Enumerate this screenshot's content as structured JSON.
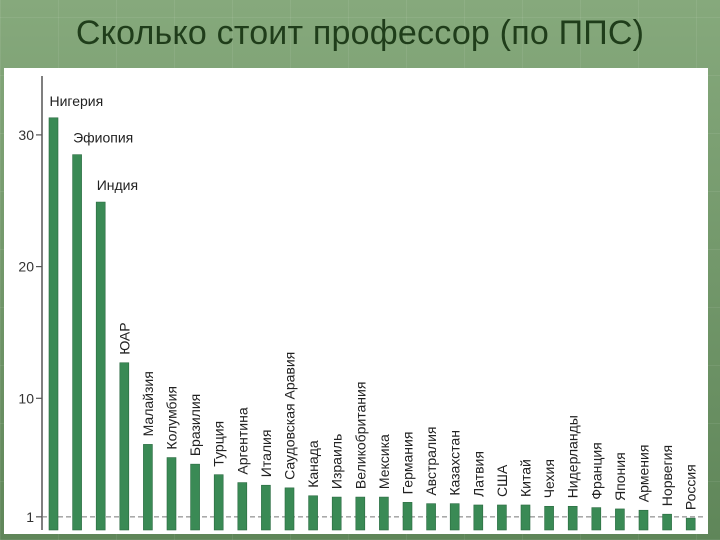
{
  "slide": {
    "title": "Сколько стоит профессор (по ППС)"
  },
  "chart_data": {
    "type": "bar",
    "title": "",
    "xlabel": "",
    "ylabel": "",
    "ylim": [
      0,
      35
    ],
    "yticks": [
      1,
      10,
      20,
      30
    ],
    "reference_line": 1,
    "grid": false,
    "bar_color": "#3a8a55",
    "categories": [
      "Нигерия",
      "Эфиопия",
      "Индия",
      "ЮАР",
      "Малайзия",
      "Колумбия",
      "Бразилия",
      "Турция",
      "Аргентина",
      "Италия",
      "Саудовская Аравия",
      "Канада",
      "Израиль",
      "Великобритания",
      "Мексика",
      "Германия",
      "Австралия",
      "Казахстан",
      "Латвия",
      "США",
      "Китай",
      "Чехия",
      "Нидерланды",
      "Франция",
      "Япония",
      "Армения",
      "Норвегия",
      "Россия"
    ],
    "values": [
      31.3,
      28.5,
      24.9,
      12.7,
      6.5,
      5.5,
      5.0,
      4.2,
      3.6,
      3.4,
      3.2,
      2.6,
      2.5,
      2.5,
      2.5,
      2.1,
      2.0,
      2.0,
      1.9,
      1.9,
      1.9,
      1.8,
      1.8,
      1.7,
      1.6,
      1.5,
      1.2,
      0.9
    ]
  }
}
